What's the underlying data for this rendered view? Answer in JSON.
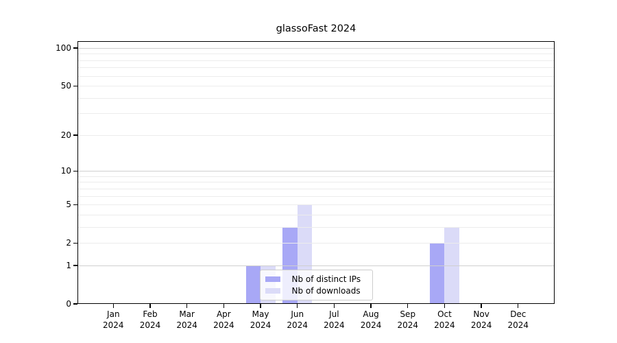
{
  "chart_data": {
    "type": "bar",
    "title": "glassoFast 2024",
    "x_ticks": [
      {
        "label": "Jan",
        "sub": "2024"
      },
      {
        "label": "Feb",
        "sub": "2024"
      },
      {
        "label": "Mar",
        "sub": "2024"
      },
      {
        "label": "Apr",
        "sub": "2024"
      },
      {
        "label": "May",
        "sub": "2024"
      },
      {
        "label": "Jun",
        "sub": "2024"
      },
      {
        "label": "Jul",
        "sub": "2024"
      },
      {
        "label": "Aug",
        "sub": "2024"
      },
      {
        "label": "Sep",
        "sub": "2024"
      },
      {
        "label": "Oct",
        "sub": "2024"
      },
      {
        "label": "Nov",
        "sub": "2024"
      },
      {
        "label": "Dec",
        "sub": "2024"
      }
    ],
    "series": [
      {
        "name": "Nb of distinct IPs",
        "color": "#a8a8f6",
        "values": [
          0,
          0,
          0,
          0,
          1,
          3,
          0,
          0,
          0,
          2,
          0,
          0
        ]
      },
      {
        "name": "Nb of downloads",
        "color": "#dbdbf8",
        "values": [
          0,
          0,
          0,
          0,
          1,
          5,
          0,
          0,
          0,
          3,
          0,
          0
        ]
      }
    ],
    "y_ticks": [
      {
        "value": 0,
        "label": "0"
      },
      {
        "value": 1,
        "label": "1"
      },
      {
        "value": 2,
        "label": "2"
      },
      {
        "value": 5,
        "label": "5"
      },
      {
        "value": 10,
        "label": "10"
      },
      {
        "value": 20,
        "label": "20"
      },
      {
        "value": 50,
        "label": "50"
      },
      {
        "value": 100,
        "label": "100"
      }
    ],
    "grid": {
      "major": [
        1,
        10,
        100
      ],
      "minor": [
        2,
        3,
        4,
        5,
        6,
        7,
        8,
        9,
        20,
        30,
        40,
        50,
        60,
        70,
        80,
        90
      ]
    },
    "yscale": "log1p",
    "ylim": [
      0,
      113.3
    ],
    "legend": {
      "position": "lower center"
    },
    "colors": {
      "major_grid": "#cfcfcf",
      "minor_grid": "#ececec",
      "axis": "#000000",
      "legend_border": "#cccccc"
    }
  }
}
